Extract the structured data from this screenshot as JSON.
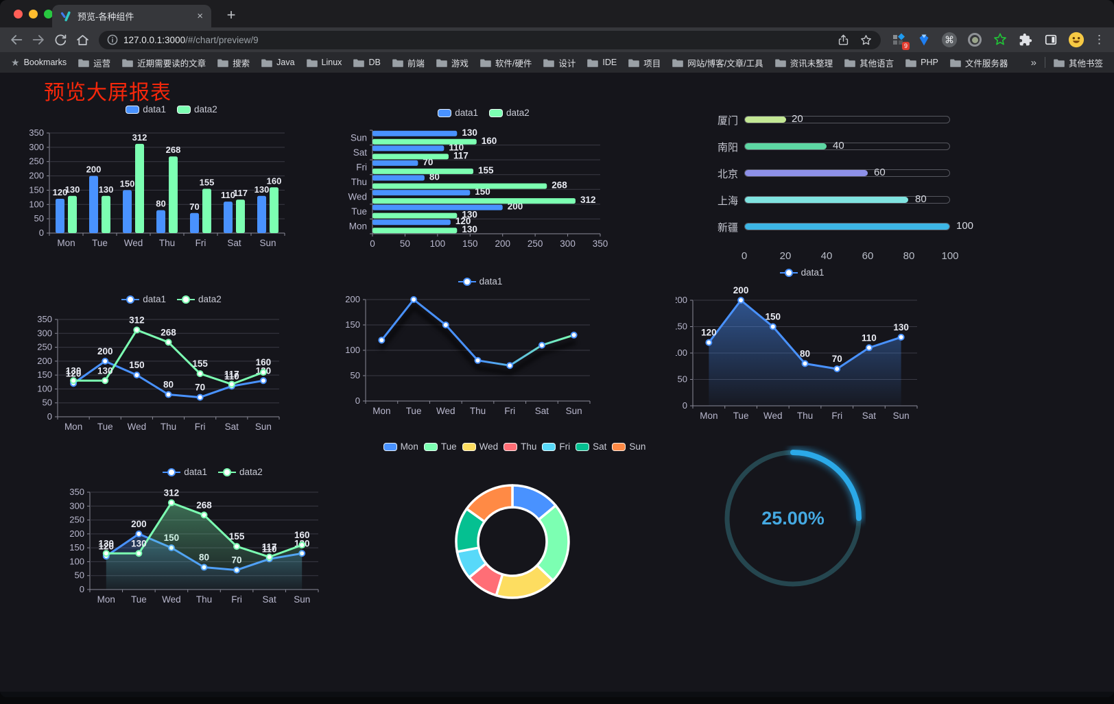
{
  "browser": {
    "window_controls": [
      "close",
      "minimize",
      "zoom"
    ],
    "tab_title": "预览-各种组件",
    "tab_close_glyph": "×",
    "new_tab_glyph": "+",
    "nav_icons": [
      "back",
      "forward",
      "reload",
      "home"
    ],
    "url_host": "127.0.0.1:3000",
    "url_path": "/#/chart/preview/9",
    "omnibox_icons": [
      "page-info",
      "share",
      "bookmark-star"
    ],
    "extension_icons": [
      "extension-grid",
      "gem",
      "command",
      "record",
      "green-star",
      "puzzle",
      "sidebar-toggle"
    ],
    "extension_badge": "9",
    "profile_icon": "avatar-emoji",
    "menu_icon": "menu-dots",
    "bookmarks_label": "Bookmarks",
    "bookmark_folders": [
      "运营",
      "近期需要读的文章",
      "搜索",
      "Java",
      "Linux",
      "DB",
      "前端",
      "游戏",
      "软件/硬件",
      "设计",
      "IDE",
      "项目",
      "网站/博客/文章/工具",
      "资讯未整理",
      "其他语言",
      "PHP",
      "文件服务器"
    ],
    "bookmarks_overflow_glyph": "»",
    "other_bookmarks_label": "其他书签"
  },
  "page": {
    "title": "预览大屏报表",
    "title_color": "#f5270b",
    "background": "#15151b"
  },
  "axis_colors": {
    "text": "#b9b8ce",
    "grid": "#3a3a45",
    "line": "#8a8a98",
    "value_label": "#e9ebf3"
  },
  "chart_data": [
    {
      "id": "c1",
      "type": "bar",
      "title": "",
      "categories": [
        "Mon",
        "Tue",
        "Wed",
        "Thu",
        "Fri",
        "Sat",
        "Sun"
      ],
      "series": [
        {
          "name": "data1",
          "color": "#4992ff",
          "values": [
            120,
            200,
            150,
            80,
            70,
            110,
            130
          ]
        },
        {
          "name": "data2",
          "color": "#7cffb2",
          "values": [
            130,
            130,
            312,
            268,
            155,
            117,
            160
          ]
        }
      ],
      "ylim": [
        0,
        350
      ],
      "ytick_step": 50,
      "legend_position": "top",
      "value_labels": true,
      "grid": true
    },
    {
      "id": "c2",
      "type": "bar-horizontal",
      "categories": [
        "Mon",
        "Tue",
        "Wed",
        "Thu",
        "Fri",
        "Sat",
        "Sun"
      ],
      "category_order": "bottom-to-top",
      "series": [
        {
          "name": "data1",
          "color": "#4992ff",
          "values": [
            120,
            200,
            150,
            80,
            70,
            110,
            130
          ]
        },
        {
          "name": "data2",
          "color": "#7cffb2",
          "values": [
            130,
            130,
            312,
            268,
            155,
            117,
            160
          ]
        }
      ],
      "xlim": [
        0,
        350
      ],
      "xtick_step": 50,
      "legend_position": "top",
      "value_labels": true,
      "grid": true
    },
    {
      "id": "c3",
      "type": "bar-progress",
      "categories": [
        "厦门",
        "南阳",
        "北京",
        "上海",
        "新疆"
      ],
      "values": [
        20,
        40,
        60,
        80,
        100
      ],
      "colors": [
        "#c3e794",
        "#5dd6a3",
        "#8d90e8",
        "#7fe3e0",
        "#3db6e6"
      ],
      "xlim": [
        0,
        100
      ],
      "xticks": [
        0,
        20,
        40,
        60,
        80,
        100
      ],
      "value_labels": true
    },
    {
      "id": "c4",
      "type": "line",
      "categories": [
        "Mon",
        "Tue",
        "Wed",
        "Thu",
        "Fri",
        "Sat",
        "Sun"
      ],
      "series": [
        {
          "name": "data1",
          "color": "#4992ff",
          "values": [
            120,
            200,
            150,
            80,
            70,
            110,
            130
          ]
        },
        {
          "name": "data2",
          "color": "#7cffb2",
          "values": [
            130,
            130,
            312,
            268,
            155,
            117,
            160
          ]
        }
      ],
      "ylim": [
        0,
        350
      ],
      "ytick_step": 50,
      "legend_position": "top",
      "value_labels": true,
      "markers": "empty-circle",
      "grid": true
    },
    {
      "id": "c5",
      "type": "line",
      "categories": [
        "Mon",
        "Tue",
        "Wed",
        "Thu",
        "Fri",
        "Sat",
        "Sun"
      ],
      "series": [
        {
          "name": "data1",
          "color": "#4992ff",
          "color_end": "#7cffb2",
          "values": [
            120,
            200,
            150,
            80,
            70,
            110,
            130
          ]
        }
      ],
      "ylim": [
        0,
        200
      ],
      "ytick_step": 50,
      "legend_position": "top",
      "value_labels": false,
      "line_gradient": true,
      "line_shadow": true,
      "markers": "empty-circle",
      "grid": true
    },
    {
      "id": "c6",
      "type": "area",
      "categories": [
        "Mon",
        "Tue",
        "Wed",
        "Thu",
        "Fri",
        "Sat",
        "Sun"
      ],
      "series": [
        {
          "name": "data1",
          "color": "#4992ff",
          "values": [
            120,
            200,
            150,
            80,
            70,
            110,
            130
          ],
          "area": true
        }
      ],
      "ylim": [
        0,
        200
      ],
      "ytick_step": 50,
      "legend_position": "top",
      "value_labels": true,
      "markers": "empty-circle",
      "grid": true
    },
    {
      "id": "c7",
      "type": "area",
      "categories": [
        "Mon",
        "Tue",
        "Wed",
        "Thu",
        "Fri",
        "Sat",
        "Sun"
      ],
      "series": [
        {
          "name": "data1",
          "color": "#4992ff",
          "values": [
            120,
            200,
            150,
            80,
            70,
            110,
            130
          ],
          "area": true
        },
        {
          "name": "data2",
          "color": "#7cffb2",
          "values": [
            130,
            130,
            312,
            268,
            155,
            117,
            160
          ],
          "area": true
        }
      ],
      "ylim": [
        0,
        350
      ],
      "ytick_step": 50,
      "legend_position": "top",
      "value_labels": true,
      "markers": "empty-circle",
      "grid": true
    },
    {
      "id": "c8",
      "type": "pie",
      "subtype": "donut",
      "categories": [
        "Mon",
        "Tue",
        "Wed",
        "Thu",
        "Fri",
        "Sat",
        "Sun"
      ],
      "values": [
        120,
        200,
        150,
        80,
        70,
        110,
        130
      ],
      "colors": [
        "#4992ff",
        "#7cffb2",
        "#fddd60",
        "#ff6e76",
        "#58d9f9",
        "#05c091",
        "#ff8a45"
      ],
      "inner_radius_ratio": 0.6,
      "border_color": "#ffffff",
      "legend_position": "top"
    },
    {
      "id": "c9",
      "type": "gauge",
      "value": 25,
      "max": 100,
      "label": "25.00%",
      "progress_color": "#2ba9e8",
      "track_color": "#25464f",
      "text_color": "#45a9e2"
    }
  ]
}
